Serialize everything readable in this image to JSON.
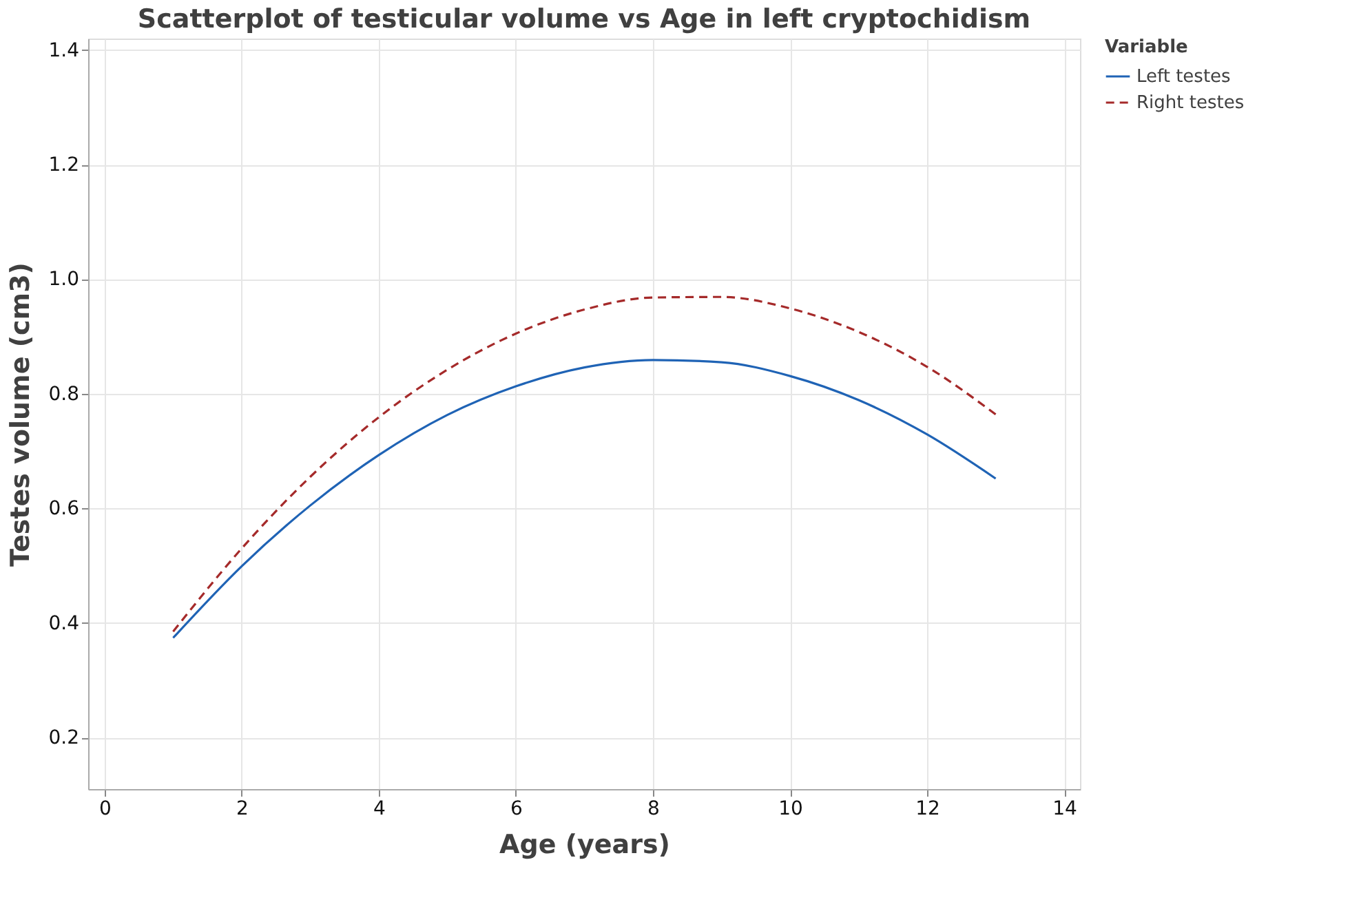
{
  "chart_data": {
    "type": "line",
    "title": "Scatterplot of testicular volume vs Age in left cryptochidism",
    "xlabel": "Age (years)",
    "ylabel": "Testes volume (cm3)",
    "legend_title": "Variable",
    "x": [
      1,
      2,
      3,
      4,
      5,
      6,
      7,
      8,
      9,
      10,
      11,
      12,
      13
    ],
    "series": [
      {
        "name": "Left testes",
        "color": "#1f63b5",
        "line_style": "solid",
        "values": [
          0.374,
          0.499,
          0.605,
          0.693,
          0.763,
          0.813,
          0.846,
          0.859,
          0.855,
          0.831,
          0.789,
          0.729,
          0.652
        ]
      },
      {
        "name": "Right testes",
        "color": "#a52a2a",
        "line_style": "dashed",
        "values": [
          0.385,
          0.53,
          0.655,
          0.759,
          0.842,
          0.905,
          0.947,
          0.968,
          0.969,
          0.949,
          0.908,
          0.847,
          0.764
        ]
      }
    ],
    "xlim": [
      -0.24,
      14.23
    ],
    "xticks": [
      0,
      2,
      4,
      6,
      8,
      10,
      12,
      14
    ],
    "ylim": [
      0.11,
      1.42
    ],
    "yticks": [
      0.2,
      0.4,
      0.6,
      0.8,
      {
        "value": 1,
        "label": "1.0"
      },
      1.2,
      1.4
    ],
    "grid": true,
    "legend": "top right",
    "marker": "none"
  }
}
